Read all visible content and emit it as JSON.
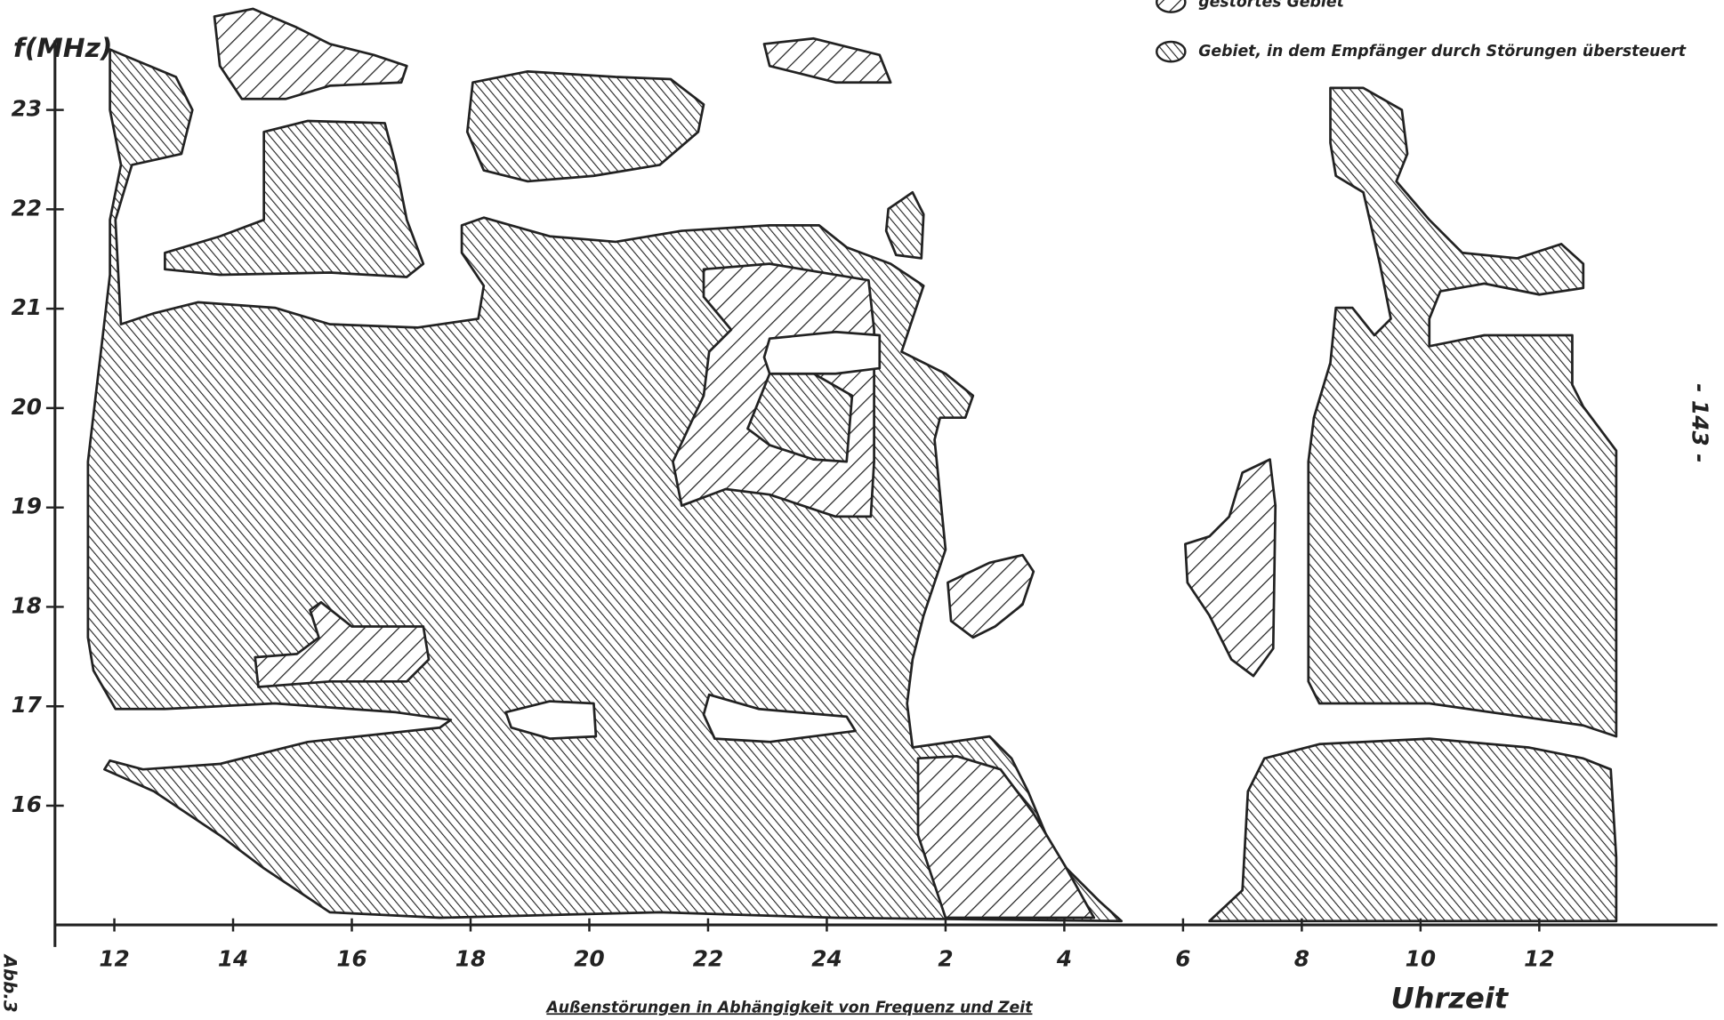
{
  "chart_data": {
    "type": "region",
    "title": "Außenstörungen in Abhängigkeit von Frequenz und Zeit",
    "y_label": "f(MHz)",
    "x_label": "Uhrzeit",
    "page_number": "- 143 -",
    "figure_label": "Abb.3",
    "xlim": [
      11,
      39
    ],
    "xticks": [
      12,
      14,
      16,
      18,
      20,
      22,
      24,
      {
        "value": 26,
        "label": "2"
      },
      {
        "value": 28,
        "label": "4"
      },
      {
        "value": 30,
        "label": "6"
      },
      {
        "value": 32,
        "label": "8"
      },
      {
        "value": 34,
        "label": "10"
      },
      {
        "value": 36,
        "label": "12"
      }
    ],
    "ylim": [
      14.8,
      23.7
    ],
    "yticks": [
      16,
      17,
      18,
      19,
      20,
      21,
      22,
      23
    ],
    "series": [
      {
        "name": "gestörtes Gebiet",
        "color": "#222222",
        "hatch": "sparse"
      },
      {
        "name": "Gebiet, in dem Empfänger durch Störungen übersteuert",
        "color": "#222222",
        "hatch": "dense"
      }
    ]
  }
}
